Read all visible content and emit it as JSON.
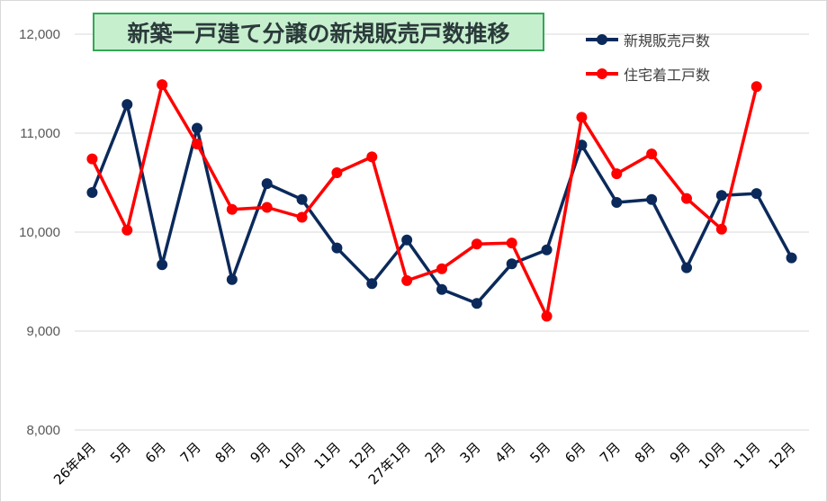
{
  "chart_data": {
    "type": "line",
    "title": "新築一戸建て分譲の新規販売戸数推移",
    "xlabel": "",
    "ylabel": "",
    "categories": [
      "26年4月",
      "5月",
      "6月",
      "7月",
      "8月",
      "9月",
      "10月",
      "11月",
      "12月",
      "27年1月",
      "2月",
      "3月",
      "4月",
      "5月",
      "6月",
      "7月",
      "8月",
      "9月",
      "10月",
      "11月",
      "12月"
    ],
    "ylim": [
      8000,
      12000
    ],
    "yticks": [
      "8,000",
      "9,000",
      "10,000",
      "11,000",
      "12,000"
    ],
    "ytick_values": [
      8000,
      9000,
      10000,
      11000,
      12000
    ],
    "grid": true,
    "legend_position": "top-right",
    "series": [
      {
        "name": "新規販売戸数",
        "color": "#0b2a5b",
        "values": [
          10400,
          11290,
          9670,
          11050,
          9520,
          10490,
          10330,
          9840,
          9480,
          9920,
          9420,
          9280,
          9680,
          9820,
          10880,
          10300,
          10330,
          9640,
          10370,
          10390,
          9740
        ]
      },
      {
        "name": "住宅着工戸数",
        "color": "#ff0000",
        "values": [
          10740,
          10020,
          11490,
          10890,
          10230,
          10250,
          10150,
          10600,
          10760,
          9510,
          9630,
          9880,
          9890,
          9150,
          11160,
          10590,
          10790,
          10340,
          10030,
          11470,
          null
        ]
      }
    ]
  }
}
